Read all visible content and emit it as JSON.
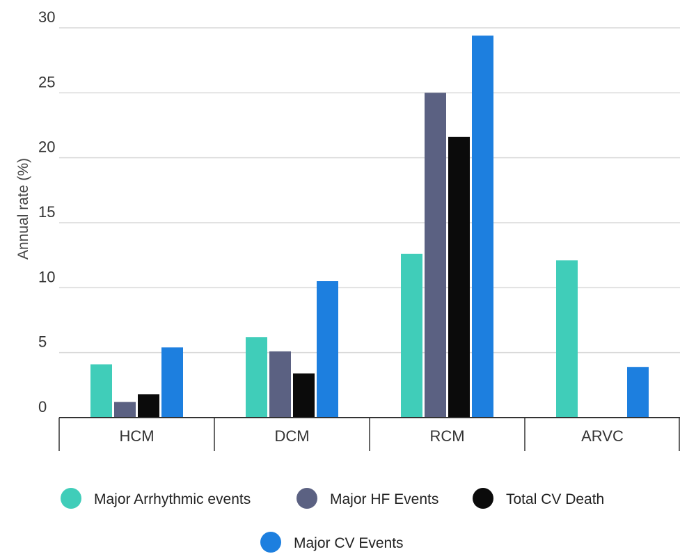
{
  "chart_data": {
    "type": "bar",
    "ylabel": "Annual rate (%)",
    "ylim": [
      0,
      30
    ],
    "yticks": [
      0,
      5,
      10,
      15,
      20,
      25,
      30
    ],
    "grid": true,
    "legend_position": "bottom",
    "categories": [
      "HCM",
      "DCM",
      "RCM",
      "ARVC"
    ],
    "series": [
      {
        "name": "Major Arrhythmic events",
        "color": "#40cdb9",
        "values": [
          4.1,
          6.2,
          12.6,
          12.1
        ]
      },
      {
        "name": "Major HF Events",
        "color": "#5b6182",
        "values": [
          1.2,
          5.1,
          25.0,
          null
        ]
      },
      {
        "name": "Total CV Death",
        "color": "#0b0b0b",
        "values": [
          1.8,
          3.4,
          21.6,
          null
        ]
      },
      {
        "name": "Major CV Events",
        "color": "#1d7fdf",
        "values": [
          5.4,
          10.5,
          29.4,
          3.9
        ]
      }
    ]
  }
}
